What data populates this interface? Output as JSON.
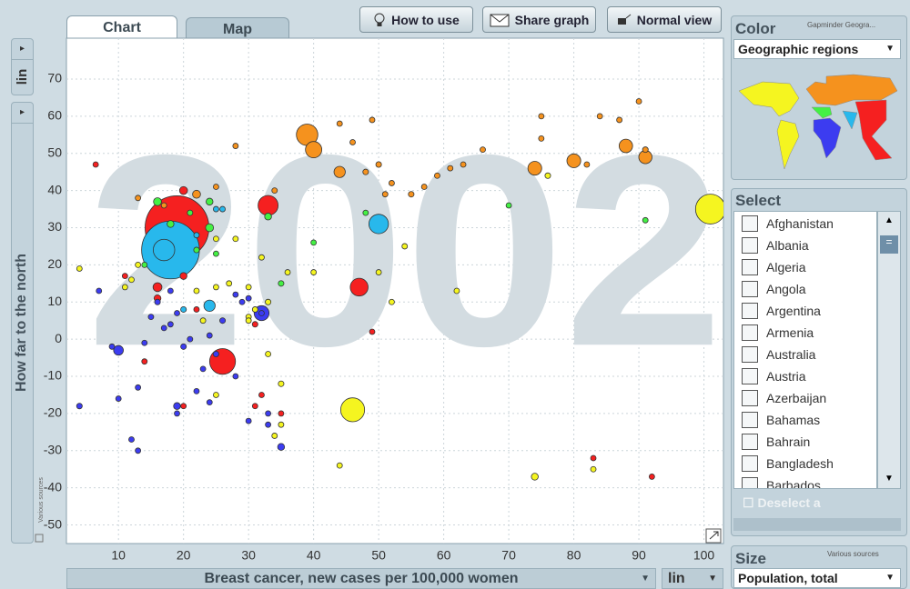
{
  "tabs": [
    "Chart",
    "Map"
  ],
  "buttons": [
    "How to use",
    "Share graph",
    "Normal view"
  ],
  "y_scale": "lin",
  "x_scale": "lin",
  "color_panel": {
    "title": "Color",
    "source": "Gapminder Geogra...",
    "indicator": "Geographic regions"
  },
  "select_panel": {
    "title": "Select",
    "countries": [
      "Afghanistan",
      "Albania",
      "Algeria",
      "Angola",
      "Argentina",
      "Armenia",
      "Australia",
      "Austria",
      "Azerbaijan",
      "Bahamas",
      "Bahrain",
      "Bangladesh",
      "Barbados"
    ],
    "deselect": "Deselect a"
  },
  "size_panel": {
    "title": "Size",
    "source": "Various sources",
    "indicator": "Population, total"
  },
  "chart_data": {
    "type": "scatter",
    "year": "2002",
    "source": "Various sources",
    "x_label": "Breast cancer, new cases per 100,000 women",
    "y_label": "How far to the north",
    "xlim": [
      2,
      103
    ],
    "ylim": [
      -55,
      81
    ],
    "xticks": [
      10,
      20,
      30,
      40,
      50,
      60,
      70,
      80,
      90,
      100
    ],
    "yticks": [
      -50,
      -40,
      -30,
      -20,
      -10,
      0,
      10,
      20,
      30,
      40,
      50,
      60,
      70
    ],
    "grid": true,
    "x": [
      19,
      18,
      101,
      46,
      26,
      33,
      39,
      50,
      47,
      40,
      74,
      80,
      88,
      91,
      16,
      32,
      24,
      17,
      22,
      20,
      24,
      24,
      16,
      16,
      20,
      18,
      33,
      35,
      21,
      22,
      25,
      14,
      48,
      40,
      70,
      91,
      25,
      6.5,
      11,
      22,
      20,
      31,
      31,
      35,
      32,
      49,
      83,
      92,
      14,
      44,
      48,
      46,
      44,
      49,
      50,
      51,
      52,
      55,
      57,
      59,
      61,
      63,
      66,
      75,
      75,
      82,
      84,
      87,
      90,
      91,
      83,
      25,
      34,
      28,
      13,
      17,
      26,
      22,
      20,
      4,
      7,
      10,
      10,
      9,
      12,
      13,
      13,
      14,
      15,
      16,
      17,
      18,
      18,
      19,
      19,
      19,
      20,
      21,
      22,
      23,
      24,
      24,
      25,
      26,
      28,
      29,
      30,
      32,
      35,
      33,
      33,
      30,
      28,
      25,
      30,
      30,
      31,
      27,
      25,
      32,
      28,
      30,
      33,
      36,
      35,
      34,
      35,
      44,
      74,
      76,
      4,
      11,
      13,
      40,
      52,
      54,
      62,
      50,
      22,
      25,
      12,
      33,
      23
    ],
    "values": [
      30,
      24,
      35,
      -19,
      -6,
      36,
      55,
      31,
      14,
      51,
      46,
      48,
      52,
      49,
      14,
      7,
      9,
      24,
      39,
      40,
      37,
      30,
      37,
      11,
      17,
      31,
      33,
      15,
      34,
      24,
      23,
      20,
      34,
      26,
      36,
      32,
      35,
      47,
      17,
      8,
      -18,
      4,
      -18,
      -20,
      -15,
      2,
      -32,
      -37,
      -6,
      45,
      45,
      53,
      58,
      59,
      47,
      39,
      42,
      39,
      41,
      44,
      46,
      47,
      51,
      54,
      60,
      47,
      60,
      59,
      64,
      51,
      -35,
      41,
      40,
      52,
      38,
      36,
      35,
      28,
      8,
      -18,
      13,
      -16,
      -3,
      -2,
      -27,
      -30,
      -13,
      -1,
      6,
      10,
      3,
      13,
      4,
      -18,
      -20,
      7,
      -2,
      0,
      -14,
      -8,
      1,
      -17,
      -4,
      5,
      12,
      10,
      11,
      7,
      -29,
      -20,
      -23,
      -22,
      -10,
      -15,
      6,
      5,
      8,
      15,
      14,
      22,
      27,
      14,
      10,
      18,
      -12,
      -26,
      -23,
      -34,
      -37,
      44,
      19,
      14,
      20,
      18,
      10,
      25,
      13,
      18,
      13,
      27,
      16,
      -4,
      5
    ],
    "sizes": [
      1280,
      1050,
      280,
      180,
      210,
      126,
      145,
      120,
      100,
      84,
      60,
      60,
      57,
      55,
      25,
      70,
      40,
      145,
      20,
      20,
      15,
      20,
      20,
      15,
      15,
      15,
      15,
      10,
      8,
      10,
      7,
      5,
      3,
      3,
      2,
      4,
      6,
      2,
      3,
      3,
      3,
      10,
      3,
      3,
      4,
      3,
      4,
      3,
      3,
      40,
      10,
      4,
      5,
      5,
      10,
      5,
      8,
      10,
      5,
      4,
      4,
      4,
      4,
      4,
      4,
      4,
      4,
      4,
      3,
      10,
      1,
      5,
      5,
      3,
      5,
      4,
      5,
      5,
      10,
      10,
      3,
      5,
      30,
      8,
      3,
      3,
      5,
      5,
      3,
      10,
      3,
      5,
      5,
      15,
      5,
      5,
      10,
      5,
      3,
      5,
      5,
      3,
      10,
      10,
      5,
      5,
      5,
      3,
      15,
      3,
      3,
      3,
      3,
      3,
      8,
      3,
      5,
      4,
      4,
      4,
      3,
      3,
      10,
      5,
      10,
      3,
      4,
      8,
      15,
      10,
      5,
      3,
      3,
      3,
      3,
      1,
      2,
      4,
      3,
      4,
      3,
      3,
      4
    ],
    "colors": [
      "#f52020",
      "#28b8ec",
      "#f5f520",
      "#f5f520",
      "#f52020",
      "#f52020",
      "#f5921e",
      "#28b8ec",
      "#f52020",
      "#f5921e",
      "#f5921e",
      "#f5921e",
      "#f5921e",
      "#f5921e",
      "#f52020",
      "#3c3cf0",
      "#28b8ec",
      "#28b8ec",
      "#f5921e",
      "#f52020",
      "#44f044",
      "#44f044",
      "#44f044",
      "#f52020",
      "#f52020",
      "#44f044",
      "#44f044",
      "#44f044",
      "#44f044",
      "#44f044",
      "#44f044",
      "#44f044",
      "#44f044",
      "#44f044",
      "#44f044",
      "#44f044",
      "#28b8ec",
      "#f52020",
      "#f52020",
      "#f52020",
      "#f52020",
      "#f52020",
      "#f52020",
      "#f52020",
      "#f52020",
      "#f52020",
      "#f52020",
      "#f52020",
      "#f52020",
      "#f5921e",
      "#f5921e",
      "#f5921e",
      "#f5921e",
      "#f5921e",
      "#f5921e",
      "#f5921e",
      "#f5921e",
      "#f5921e",
      "#f5921e",
      "#f5921e",
      "#f5921e",
      "#f5921e",
      "#f5921e",
      "#f5921e",
      "#f5921e",
      "#f5921e",
      "#f5921e",
      "#f5921e",
      "#f5921e",
      "#f5921e",
      "#f5f520",
      "#f5921e",
      "#f5921e",
      "#f5921e",
      "#f5921e",
      "#f5921e",
      "#28b8ec",
      "#28b8ec",
      "#28b8ec",
      "#3c3cf0",
      "#3c3cf0",
      "#3c3cf0",
      "#3c3cf0",
      "#3c3cf0",
      "#3c3cf0",
      "#3c3cf0",
      "#3c3cf0",
      "#3c3cf0",
      "#3c3cf0",
      "#3c3cf0",
      "#3c3cf0",
      "#3c3cf0",
      "#3c3cf0",
      "#3c3cf0",
      "#3c3cf0",
      "#3c3cf0",
      "#3c3cf0",
      "#3c3cf0",
      "#3c3cf0",
      "#3c3cf0",
      "#3c3cf0",
      "#3c3cf0",
      "#3c3cf0",
      "#3c3cf0",
      "#3c3cf0",
      "#3c3cf0",
      "#3c3cf0",
      "#3c3cf0",
      "#3c3cf0",
      "#3c3cf0",
      "#3c3cf0",
      "#3c3cf0",
      "#3c3cf0",
      "#f5f520",
      "#f5f520",
      "#f5f520",
      "#f5f520",
      "#f5f520",
      "#f5f520",
      "#f5f520",
      "#f5f520",
      "#f5f520",
      "#f5f520",
      "#f5f520",
      "#f5f520",
      "#f5f520",
      "#f5f520",
      "#f5f520",
      "#f5f520",
      "#f5f520",
      "#f5f520",
      "#f5f520",
      "#f5f520",
      "#f5f520",
      "#f5f520",
      "#f5f520",
      "#f5f520",
      "#f5f520",
      "#f5f520",
      "#f5f520",
      "#f5f520",
      "#f5f520",
      "#f5f520"
    ]
  }
}
